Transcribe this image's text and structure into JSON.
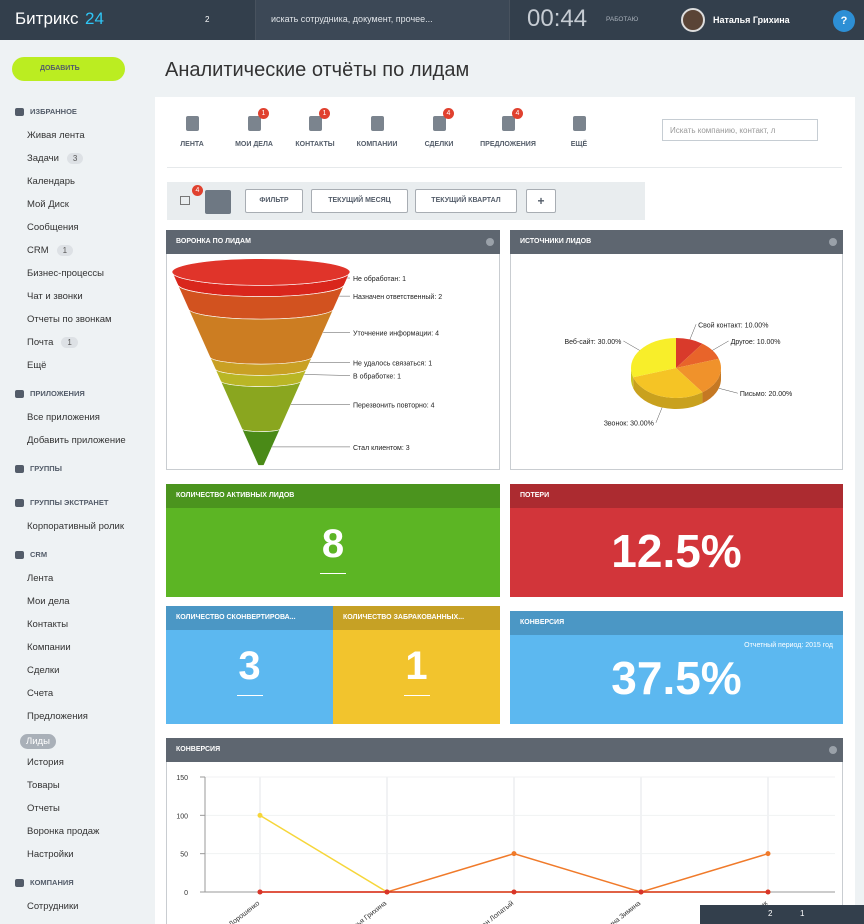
{
  "header": {
    "logo": "Битрикс",
    "logo_num": "24",
    "notifications": "2",
    "search": "искать сотрудника, документ, прочее...",
    "time": "00:44",
    "status": "РАБОТАЮ",
    "user": "Наталья Грихина",
    "help": "?"
  },
  "sidebar": {
    "add_button": "ДОБАВИТЬ",
    "sections": [
      {
        "title": "ИЗБРАННОЕ",
        "items": [
          {
            "label": "Живая лента"
          },
          {
            "label": "Задачи",
            "counter": "3"
          },
          {
            "label": "Календарь"
          },
          {
            "label": "Мой Диск"
          },
          {
            "label": "Сообщения"
          },
          {
            "label": "CRM",
            "counter": "1"
          },
          {
            "label": "Бизнес-процессы"
          },
          {
            "label": "Чат и звонки"
          },
          {
            "label": "Отчеты по звонкам"
          },
          {
            "label": "Почта",
            "counter": "1"
          },
          {
            "label": "Ещё"
          }
        ]
      },
      {
        "title": "ПРИЛОЖЕНИЯ",
        "items": [
          {
            "label": "Все приложения"
          },
          {
            "label": "Добавить приложение"
          }
        ]
      },
      {
        "title": "ГРУППЫ"
      },
      {
        "title": "ГРУППЫ ЭКСТРАНЕТ",
        "items": [
          {
            "label": "Корпоративный ролик"
          }
        ]
      },
      {
        "title": "CRM",
        "items": [
          {
            "label": "Лента"
          },
          {
            "label": "Мои дела"
          },
          {
            "label": "Контакты"
          },
          {
            "label": "Компании"
          },
          {
            "label": "Сделки"
          },
          {
            "label": "Счета"
          },
          {
            "label": "Предложения"
          },
          {
            "label": "Лиды",
            "active": true
          },
          {
            "label": "История"
          },
          {
            "label": "Товары"
          },
          {
            "label": "Отчеты"
          },
          {
            "label": "Воронка продаж"
          },
          {
            "label": "Настройки"
          }
        ]
      },
      {
        "title": "КОМПАНИЯ",
        "items": [
          {
            "label": "Сотрудники"
          }
        ]
      }
    ]
  },
  "page_title": "Аналитические отчёты по лидам",
  "tabs": {
    "items": [
      {
        "label": "ЛЕНТА"
      },
      {
        "label": "МОИ ДЕЛА",
        "badge": "1"
      },
      {
        "label": "КОНТАКТЫ",
        "badge": "1"
      },
      {
        "label": "КОМПАНИИ"
      },
      {
        "label": "СДЕЛКИ",
        "badge": "4"
      },
      {
        "label": "ПРЕДЛОЖЕНИЯ",
        "badge": "4"
      },
      {
        "label": "ЕЩЁ"
      }
    ],
    "search": "Искать компанию, контакт, л"
  },
  "filter": {
    "badge": "4",
    "buttons": [
      "ФИЛЬТР",
      "ТЕКУЩИЙ МЕСЯЦ",
      "ТЕКУЩИЙ КВАРТАЛ",
      "+"
    ]
  },
  "tiles": [
    {
      "title": "КОЛИЧЕСТВО АКТИВНЫХ ЛИДОВ",
      "value": "8",
      "color": "#5cb524"
    },
    {
      "title": "ПОТЕРИ",
      "value": "12.5%",
      "color": "#d2353a"
    },
    {
      "title": "КОЛИЧЕСТВО СКОНВЕРТИРОВА...",
      "value": "3",
      "color": "#5cb8f0"
    },
    {
      "title": "КОЛИЧЕСТВО ЗАБРАКОВАННЫХ...",
      "value": "1",
      "color": "#f2c42d"
    },
    {
      "title": "КОНВЕРСИЯ",
      "subtitle": "Отчетный период: 2015 год",
      "value": "37.5%",
      "color": "#5cb8f0"
    }
  ],
  "chart_data": [
    {
      "type": "funnel",
      "title": "ВОРОНКА ПО ЛИДАМ",
      "values": [
        1,
        2,
        4,
        1,
        1,
        4,
        3
      ],
      "value_labels": [
        "Не обработан: 1",
        "Назначен ответственный: 2",
        "Уточнение информации: 4",
        "Не удалось связаться: 1",
        "В обработке: 1",
        "Перезвонить повторно: 4",
        "Стал клиентом: 3"
      ],
      "colors": [
        "#d9261c",
        "#d2521f",
        "#cc7d22",
        "#c9a024",
        "#b9b625",
        "#8aa61f",
        "#4a8a17"
      ]
    },
    {
      "type": "pie",
      "title": "ИСТОЧНИКИ ЛИДОВ",
      "values": [
        10,
        10,
        20,
        30,
        30
      ],
      "value_labels": [
        "Свой контакт: 10.00%",
        "Другое: 10.00%",
        "Письмо: 20.00%",
        "Звонок: 30.00%",
        "Веб-сайт: 30.00%"
      ],
      "colors": [
        "#d93a2b",
        "#e8642a",
        "#f0922b",
        "#f5c425",
        "#f8ee2a"
      ]
    },
    {
      "type": "line",
      "title": "КОНВЕРСИЯ",
      "categories": [
        "Дорошенко",
        "Наталья Грихина",
        "Иван Лопатый",
        "Ирина Зимина",
        "Сотрудник"
      ],
      "series": [
        {
          "color": "#f6d63a",
          "values": [
            100,
            0,
            0,
            0,
            0
          ]
        },
        {
          "color": "#f07a2a",
          "values": [
            0,
            0,
            50,
            0,
            50
          ]
        },
        {
          "color": "#d8342a",
          "values": [
            0,
            0,
            0,
            0,
            0
          ]
        }
      ],
      "ylim": [
        0,
        150
      ],
      "yticks": [
        0,
        50,
        100,
        150
      ],
      "grid": true
    }
  ],
  "footer_bar": {
    "notifications": "2",
    "messages": "1"
  }
}
